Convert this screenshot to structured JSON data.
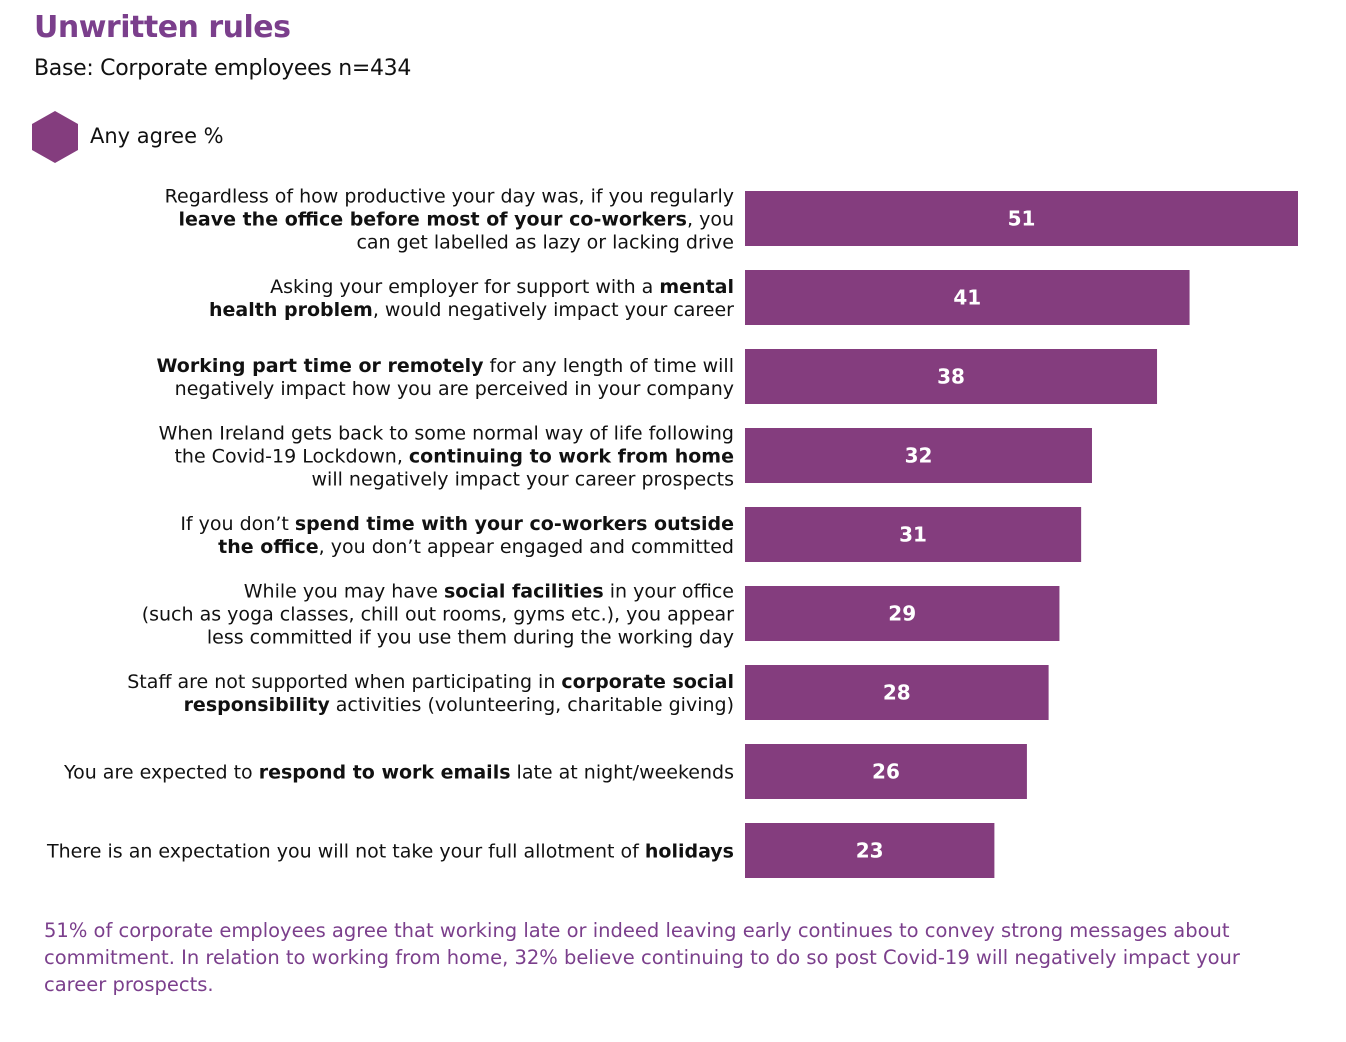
{
  "title": "Unwritten rules",
  "subtitle": "Base: Corporate employees n=434",
  "legend": {
    "label": "Any agree %",
    "icon": "hexagon-icon"
  },
  "colors": {
    "bar": "#843d7e",
    "title": "#7b3f8c",
    "bar_text": "#ffffff"
  },
  "chart_data": {
    "type": "bar",
    "orientation": "horizontal",
    "series": [
      {
        "name": "Any agree %",
        "values": [
          51,
          41,
          38,
          32,
          31,
          29,
          28,
          26,
          23
        ]
      }
    ],
    "categories": [
      "Regardless of how productive your day was, if you regularly leave the office before most of your co-workers, you can get labelled as lazy or lacking drive",
      "Asking your employer for support with a mental health problem, would negatively impact your career",
      "Working part time or remotely for any length of time will negatively impact how you are perceived in your company",
      "When Ireland gets back to some normal way of life following the Covid-19 Lockdown, continuing to work from home will negatively impact your career prospects",
      "If you don’t spend time with your co-workers outside the office, you don’t appear engaged and committed",
      "While you may have social facilities in your office (such as yoga classes, chill out rooms, gyms etc.), you appear less committed if you use them during the working day",
      "Staff are not supported when participating in corporate social responsibility activities (volunteering, charitable giving)",
      "You are expected to respond to work emails late at night/weekends",
      "There is an expectation you will not take your full allotment of holidays"
    ],
    "category_lines": [
      [
        [
          {
            "t": "Regardless of how productive your day was, if you regularly",
            "b": false
          }
        ],
        [
          {
            "t": "leave the office before most of your co-workers",
            "b": true
          },
          {
            "t": ", you",
            "b": false
          }
        ],
        [
          {
            "t": "can get labelled as lazy or lacking drive",
            "b": false
          }
        ]
      ],
      [
        [
          {
            "t": "Asking your employer for support with a ",
            "b": false
          },
          {
            "t": "mental",
            "b": true
          }
        ],
        [
          {
            "t": "health problem",
            "b": true
          },
          {
            "t": ", would negatively impact your career",
            "b": false
          }
        ]
      ],
      [
        [
          {
            "t": "Working part time or remotely",
            "b": true
          },
          {
            "t": " for any length of time will",
            "b": false
          }
        ],
        [
          {
            "t": "negatively impact how you are perceived in your company",
            "b": false
          }
        ]
      ],
      [
        [
          {
            "t": "When Ireland gets back to some normal way of life following",
            "b": false
          }
        ],
        [
          {
            "t": "the Covid-19 Lockdown, ",
            "b": false
          },
          {
            "t": "continuing to work from home",
            "b": true
          }
        ],
        [
          {
            "t": "will negatively impact your career prospects",
            "b": false
          }
        ]
      ],
      [
        [
          {
            "t": "If you don’t ",
            "b": false
          },
          {
            "t": "spend time with your co-workers outside",
            "b": true
          }
        ],
        [
          {
            "t": "the office",
            "b": true
          },
          {
            "t": ", you don’t appear engaged and committed",
            "b": false
          }
        ]
      ],
      [
        [
          {
            "t": "While you may have ",
            "b": false
          },
          {
            "t": "social facilities",
            "b": true
          },
          {
            "t": " in your office",
            "b": false
          }
        ],
        [
          {
            "t": "(such as yoga classes, chill out rooms, gyms etc.), you appear",
            "b": false
          }
        ],
        [
          {
            "t": "less committed if you use them during the working day",
            "b": false
          }
        ]
      ],
      [
        [
          {
            "t": "Staff are not supported when participating in ",
            "b": false
          },
          {
            "t": "corporate social",
            "b": true
          }
        ],
        [
          {
            "t": "responsibility",
            "b": true
          },
          {
            "t": " activities (volunteering, charitable giving)",
            "b": false
          }
        ]
      ],
      [
        [
          {
            "t": "You are expected to ",
            "b": false
          },
          {
            "t": "respond to work emails",
            "b": true
          },
          {
            "t": " late at night/weekends",
            "b": false
          }
        ]
      ],
      [
        [
          {
            "t": "There is an expectation you will not take your full allotment of ",
            "b": false
          },
          {
            "t": "holidays",
            "b": true
          }
        ]
      ]
    ],
    "xlim": [
      0,
      51
    ],
    "grid": false,
    "legend_position": "top-left"
  },
  "footnote": "51% of corporate employees agree that working late or indeed leaving early continues to convey strong messages about commitment. In relation to working from home, 32% believe continuing to do so post Covid-19 will negatively impact your career prospects."
}
